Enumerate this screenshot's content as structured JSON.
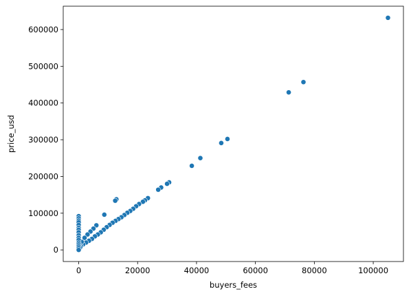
{
  "chart_data": {
    "type": "scatter",
    "x_label": "buyers_fees",
    "y_label": "price_usd",
    "x": [
      105000,
      76300,
      71300,
      50500,
      48400,
      41300,
      38400,
      30700,
      30000,
      28000,
      27000,
      23500,
      22500,
      21800,
      20500,
      19500,
      18500,
      17500,
      16500,
      15500,
      14500,
      13500,
      12500,
      12800,
      12400,
      11500,
      10500,
      9500,
      8700,
      8500,
      7500,
      6500,
      6000,
      5500,
      5000,
      4500,
      4000,
      3500,
      3000,
      2500,
      2000,
      1500,
      1000,
      800,
      500,
      0,
      0,
      0,
      0,
      0,
      0,
      0,
      0,
      0,
      0,
      0,
      0,
      0,
      0,
      0,
      0
    ],
    "values": [
      632000,
      457000,
      429000,
      302000,
      291000,
      250000,
      229000,
      184000,
      180000,
      170000,
      164000,
      141000,
      135000,
      131000,
      125000,
      119000,
      112000,
      106000,
      101000,
      95000,
      89000,
      84000,
      79000,
      138000,
      134000,
      74000,
      68000,
      62000,
      96000,
      55000,
      48000,
      42000,
      67000,
      37000,
      58000,
      30000,
      50000,
      25000,
      42000,
      20000,
      33000,
      15000,
      22000,
      10000,
      7000,
      92000,
      86000,
      80000,
      75000,
      68000,
      60000,
      55000,
      48000,
      40000,
      33000,
      27000,
      20000,
      15000,
      10000,
      5000,
      0
    ],
    "color": "#1f77b4",
    "xlim": [
      -5250,
      110250
    ],
    "ylim": [
      -31600,
      663600
    ],
    "xticks": [
      0,
      20000,
      40000,
      60000,
      80000,
      100000
    ],
    "yticks": [
      0,
      100000,
      200000,
      300000,
      400000,
      500000,
      600000
    ],
    "grid": false
  }
}
